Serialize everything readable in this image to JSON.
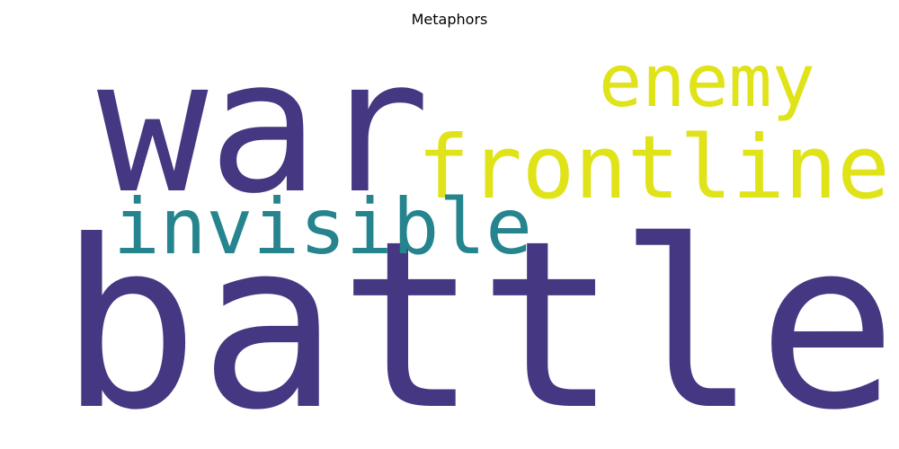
{
  "chart_data": {
    "type": "wordcloud",
    "title": "Metaphors",
    "words": [
      {
        "text": "war",
        "weight": 0.55,
        "color": "#453781"
      },
      {
        "text": "battle",
        "weight": 1.0,
        "color": "#453781"
      },
      {
        "text": "enemy",
        "weight": 0.22,
        "color": "#DFE318"
      },
      {
        "text": "frontline",
        "weight": 0.3,
        "color": "#DFE318"
      },
      {
        "text": "invisible",
        "weight": 0.26,
        "color": "#25848E"
      }
    ]
  }
}
